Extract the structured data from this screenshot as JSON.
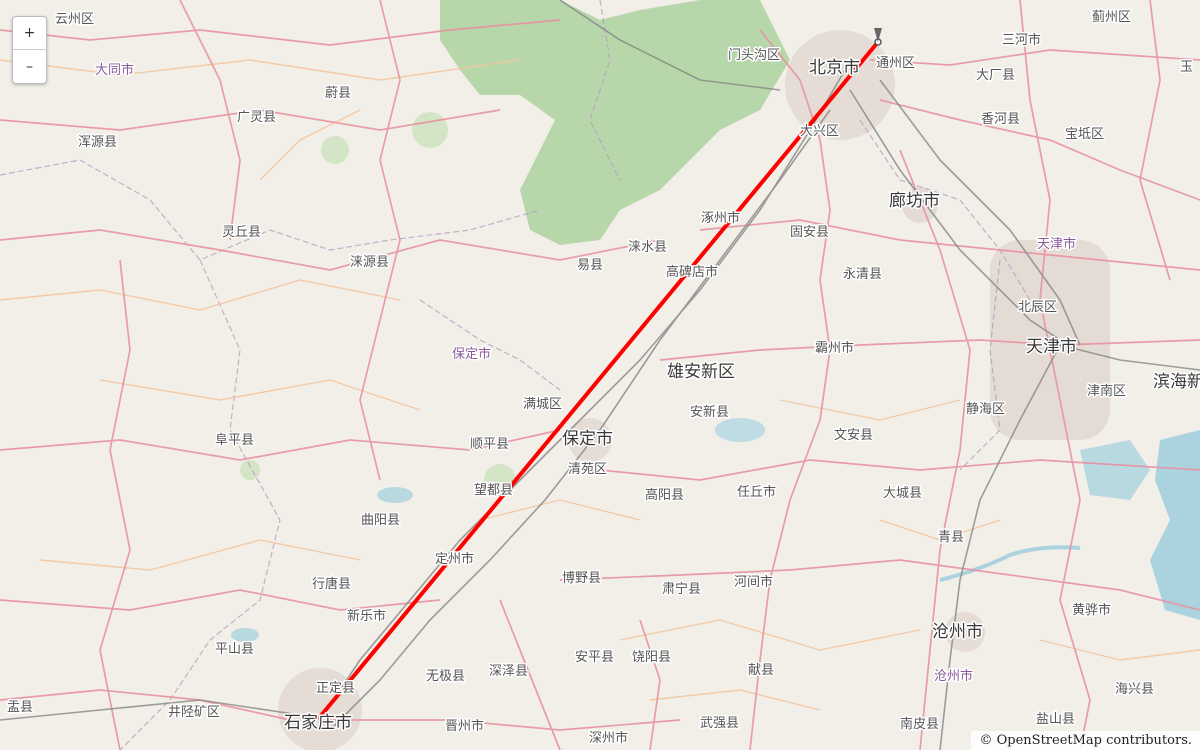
{
  "map": {
    "zoom_in_label": "+",
    "zoom_out_label": "–",
    "attribution": {
      "copyright": "©",
      "link_text": "OpenStreetMap",
      "suffix": "contributors."
    },
    "route": {
      "from": "石家庄市",
      "to": "北京市",
      "color": "#ff0000"
    },
    "colors": {
      "land": "#f2efe9",
      "forest": "#add19e",
      "water": "#aad3df",
      "road_major": "#e892a2",
      "road_minor": "#f7c6a5",
      "rail": "#888888"
    },
    "labels": [
      {
        "id": "yunzhou",
        "text": "云州区",
        "type": "county"
      },
      {
        "id": "datong",
        "text": "大同市",
        "type": "region"
      },
      {
        "id": "yuxian",
        "text": "蔚县",
        "type": "county"
      },
      {
        "id": "guangling",
        "text": "广灵县",
        "type": "county"
      },
      {
        "id": "hunyuan",
        "text": "浑源县",
        "type": "county"
      },
      {
        "id": "lingqiu",
        "text": "灵丘县",
        "type": "county"
      },
      {
        "id": "laiyuan",
        "text": "涞源县",
        "type": "county"
      },
      {
        "id": "yixian",
        "text": "易县",
        "type": "county"
      },
      {
        "id": "laishui",
        "text": "涞水县",
        "type": "county"
      },
      {
        "id": "zhuozhou",
        "text": "涿州市",
        "type": "county"
      },
      {
        "id": "gaobeidian",
        "text": "高碑店市",
        "type": "county"
      },
      {
        "id": "mentougou",
        "text": "门头沟区",
        "type": "county"
      },
      {
        "id": "beijing",
        "text": "北京市",
        "type": "city"
      },
      {
        "id": "tongzhou",
        "text": "通州区",
        "type": "county"
      },
      {
        "id": "sanhe",
        "text": "三河市",
        "type": "county"
      },
      {
        "id": "jizhou",
        "text": "蓟州区",
        "type": "county"
      },
      {
        "id": "yutian",
        "text": "玉",
        "type": "county"
      },
      {
        "id": "dachang",
        "text": "大厂县",
        "type": "county"
      },
      {
        "id": "xianghe",
        "text": "香河县",
        "type": "county"
      },
      {
        "id": "baodi",
        "text": "宝坻区",
        "type": "county"
      },
      {
        "id": "daxing",
        "text": "大兴区",
        "type": "county"
      },
      {
        "id": "langfang",
        "text": "廊坊市",
        "type": "city"
      },
      {
        "id": "guan",
        "text": "固安县",
        "type": "county"
      },
      {
        "id": "yongqing",
        "text": "永清县",
        "type": "county"
      },
      {
        "id": "tianjin_region",
        "text": "天津市",
        "type": "region"
      },
      {
        "id": "beichen",
        "text": "北辰区",
        "type": "county"
      },
      {
        "id": "tianjin",
        "text": "天津市",
        "type": "city"
      },
      {
        "id": "binhai",
        "text": "滨海新",
        "type": "city"
      },
      {
        "id": "jinnan",
        "text": "津南区",
        "type": "county"
      },
      {
        "id": "bazhou",
        "text": "霸州市",
        "type": "county"
      },
      {
        "id": "xiongan",
        "text": "雄安新区",
        "type": "city"
      },
      {
        "id": "baoding_region",
        "text": "保定市",
        "type": "region"
      },
      {
        "id": "mancheng",
        "text": "满城区",
        "type": "county"
      },
      {
        "id": "baoding",
        "text": "保定市",
        "type": "city"
      },
      {
        "id": "anxin",
        "text": "安新县",
        "type": "county"
      },
      {
        "id": "jinghai",
        "text": "静海区",
        "type": "county"
      },
      {
        "id": "wenan",
        "text": "文安县",
        "type": "county"
      },
      {
        "id": "fuping",
        "text": "阜平县",
        "type": "county"
      },
      {
        "id": "shunping",
        "text": "顺平县",
        "type": "county"
      },
      {
        "id": "qingyuan",
        "text": "清苑区",
        "type": "county"
      },
      {
        "id": "wangdu",
        "text": "望都县",
        "type": "county"
      },
      {
        "id": "gaoyang",
        "text": "高阳县",
        "type": "county"
      },
      {
        "id": "renqiu",
        "text": "任丘市",
        "type": "county"
      },
      {
        "id": "daicheng",
        "text": "大城县",
        "type": "county"
      },
      {
        "id": "quyang",
        "text": "曲阳县",
        "type": "county"
      },
      {
        "id": "dingzhou",
        "text": "定州市",
        "type": "county"
      },
      {
        "id": "qingxian",
        "text": "青县",
        "type": "county"
      },
      {
        "id": "xingtang",
        "text": "行唐县",
        "type": "county"
      },
      {
        "id": "boye",
        "text": "博野县",
        "type": "county"
      },
      {
        "id": "suning",
        "text": "肃宁县",
        "type": "county"
      },
      {
        "id": "hejian",
        "text": "河间市",
        "type": "county"
      },
      {
        "id": "xinle",
        "text": "新乐市",
        "type": "county"
      },
      {
        "id": "huanghua",
        "text": "黄骅市",
        "type": "county"
      },
      {
        "id": "pingshan",
        "text": "平山县",
        "type": "county"
      },
      {
        "id": "cangzhou",
        "text": "沧州市",
        "type": "city"
      },
      {
        "id": "anping",
        "text": "安平县",
        "type": "county"
      },
      {
        "id": "raoyang",
        "text": "饶阳县",
        "type": "county"
      },
      {
        "id": "wuji",
        "text": "无极县",
        "type": "county"
      },
      {
        "id": "shenze",
        "text": "深泽县",
        "type": "county"
      },
      {
        "id": "cangzhou_region",
        "text": "沧州市",
        "type": "region"
      },
      {
        "id": "xianxian",
        "text": "献县",
        "type": "county"
      },
      {
        "id": "zhengding",
        "text": "正定县",
        "type": "county"
      },
      {
        "id": "haixing",
        "text": "海兴县",
        "type": "county"
      },
      {
        "id": "yuxian2",
        "text": "盂县",
        "type": "county"
      },
      {
        "id": "jingxing",
        "text": "井陉矿区",
        "type": "county"
      },
      {
        "id": "shijiazhuang",
        "text": "石家庄市",
        "type": "city"
      },
      {
        "id": "jinzhou",
        "text": "晋州市",
        "type": "county"
      },
      {
        "id": "wuqiang",
        "text": "武强县",
        "type": "county"
      },
      {
        "id": "nanpi",
        "text": "南皮县",
        "type": "county"
      },
      {
        "id": "yancun",
        "text": "盐山县",
        "type": "county"
      },
      {
        "id": "shenzhou",
        "text": "深州市",
        "type": "county"
      }
    ]
  }
}
